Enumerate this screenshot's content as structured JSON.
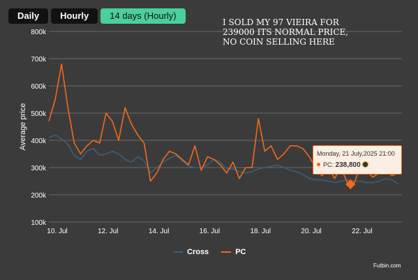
{
  "tabs": [
    {
      "label": "Daily",
      "active": false
    },
    {
      "label": "Hourly",
      "active": false
    },
    {
      "label": "14 days (Hourly)",
      "active": true
    }
  ],
  "overlay_text": "I SOLD MY 97 VIEIRA FOR 239000 ITS NORMAL PRICE, NO COIN SELLING HERE",
  "credit": "Futbin.com",
  "tooltip": {
    "date": "Monday, 21 July,2025 21:00",
    "series": "PC:",
    "value": "238,800",
    "coin_icon": "coin-icon"
  },
  "colors": {
    "accent": "#4bd09d",
    "cross": "#3a5f7d",
    "pc": "#f26a1b"
  },
  "chart_data": {
    "type": "line",
    "title": "",
    "xlabel": "",
    "ylabel": "Average price",
    "ylim": [
      100000,
      800000
    ],
    "yticks": [
      {
        "value": 800000,
        "label": "800k"
      },
      {
        "value": 700000,
        "label": "700k"
      },
      {
        "value": 600000,
        "label": "600k"
      },
      {
        "value": 500000,
        "label": "500k"
      },
      {
        "value": 400000,
        "label": "400k"
      },
      {
        "value": 300000,
        "label": "300k"
      },
      {
        "value": 200000,
        "label": "200k"
      },
      {
        "value": 100000,
        "label": "100k"
      }
    ],
    "xlim": [
      10,
      23.9
    ],
    "xticks": [
      {
        "value": 10,
        "label": "10. Jul"
      },
      {
        "value": 12,
        "label": "12. Jul"
      },
      {
        "value": 14,
        "label": "14. Jul"
      },
      {
        "value": 16,
        "label": "16. Jul"
      },
      {
        "value": 18,
        "label": "18. Jul"
      },
      {
        "value": 20,
        "label": "20. Jul"
      },
      {
        "value": 22,
        "label": "22. Jul"
      }
    ],
    "grid": true,
    "legend_position": "bottom",
    "series": [
      {
        "name": "Cross",
        "color": "#3a5f7d",
        "x": [
          10.0,
          10.25,
          10.5,
          10.75,
          11.0,
          11.25,
          11.5,
          11.75,
          12.0,
          12.25,
          12.5,
          12.75,
          13.0,
          13.25,
          13.5,
          13.75,
          14.0,
          14.25,
          14.5,
          14.75,
          15.0,
          15.25,
          15.5,
          15.75,
          16.0,
          16.25,
          16.5,
          16.75,
          17.0,
          17.25,
          17.5,
          17.75,
          18.0,
          18.25,
          18.5,
          18.75,
          19.0,
          19.25,
          19.5,
          19.75,
          20.0,
          20.25,
          20.5,
          20.75,
          21.0,
          21.25,
          21.5,
          21.75,
          22.0,
          22.25,
          22.5,
          22.75,
          23.0,
          23.25,
          23.5,
          23.75
        ],
        "values": [
          410000,
          420000,
          405000,
          385000,
          345000,
          330000,
          360000,
          370000,
          345000,
          350000,
          360000,
          350000,
          330000,
          320000,
          340000,
          325000,
          280000,
          300000,
          320000,
          335000,
          345000,
          325000,
          305000,
          300000,
          300000,
          310000,
          330000,
          320000,
          295000,
          295000,
          285000,
          280000,
          285000,
          295000,
          300000,
          305000,
          310000,
          300000,
          290000,
          285000,
          275000,
          260000,
          255000,
          255000,
          250000,
          245000,
          250000,
          255000,
          250000,
          250000,
          245000,
          245000,
          250000,
          260000,
          255000,
          240000
        ]
      },
      {
        "name": "PC",
        "color": "#f26a1b",
        "x": [
          10.0,
          10.25,
          10.5,
          10.75,
          11.0,
          11.25,
          11.5,
          11.75,
          12.0,
          12.25,
          12.5,
          12.75,
          13.0,
          13.25,
          13.5,
          13.75,
          14.0,
          14.25,
          14.5,
          14.75,
          15.0,
          15.25,
          15.5,
          15.75,
          16.0,
          16.25,
          16.5,
          16.75,
          17.0,
          17.25,
          17.5,
          17.75,
          18.0,
          18.25,
          18.5,
          18.75,
          19.0,
          19.25,
          19.5,
          19.75,
          20.0,
          20.25,
          20.5,
          20.75,
          21.0,
          21.25,
          21.5,
          21.75,
          22.0,
          22.25,
          22.5,
          22.75,
          23.0,
          23.25,
          23.5,
          23.75
        ],
        "values": [
          470000,
          550000,
          680000,
          520000,
          390000,
          350000,
          380000,
          400000,
          390000,
          500000,
          470000,
          400000,
          520000,
          460000,
          420000,
          390000,
          250000,
          280000,
          330000,
          360000,
          350000,
          330000,
          310000,
          380000,
          290000,
          340000,
          330000,
          310000,
          280000,
          320000,
          260000,
          300000,
          300000,
          480000,
          360000,
          380000,
          330000,
          350000,
          380000,
          380000,
          370000,
          340000,
          300000,
          270000,
          300000,
          260000,
          300000,
          245000,
          238800,
          300000,
          290000,
          265000,
          280000,
          290000,
          270000,
          280000
        ]
      }
    ],
    "highlight": {
      "series": "PC",
      "x": 21.875,
      "value": 238800
    }
  }
}
